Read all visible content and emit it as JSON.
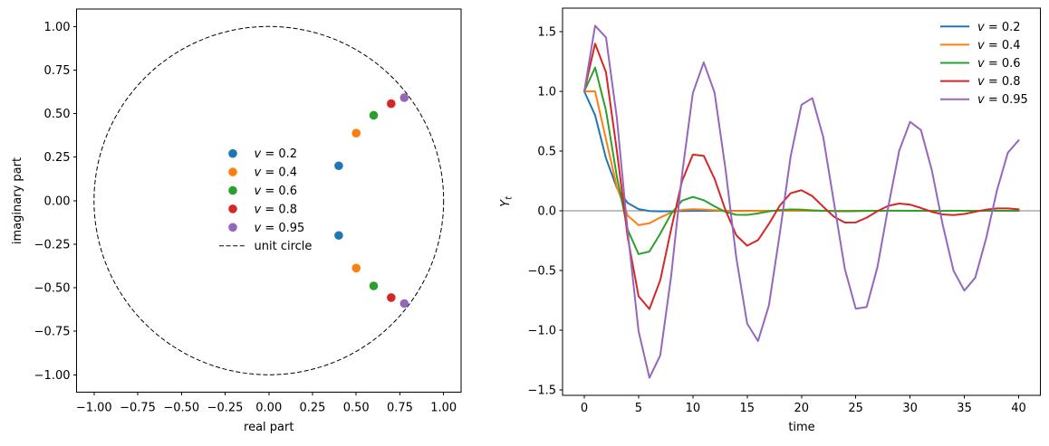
{
  "figure": {
    "background": "#ffffff",
    "text_color": "#000000",
    "spine_color": "#000000"
  },
  "chart_data": [
    {
      "type": "scatter",
      "title": "",
      "xlabel": "real part",
      "ylabel": "imaginary part",
      "xlim": [
        -1.1,
        1.1
      ],
      "ylim": [
        -1.1,
        1.1
      ],
      "xticks": [
        -1.0,
        -0.75,
        -0.5,
        -0.25,
        0.0,
        0.25,
        0.5,
        0.75,
        1.0
      ],
      "yticks": [
        -1.0,
        -0.75,
        -0.5,
        -0.25,
        0.0,
        0.25,
        0.5,
        0.75,
        1.0
      ],
      "grid": false,
      "legend_position": "center",
      "series": [
        {
          "label": "v = 0.2",
          "color": "#1f77b4",
          "points": [
            [
              0.4,
              0.2
            ],
            [
              0.4,
              -0.2
            ]
          ]
        },
        {
          "label": "v = 0.4",
          "color": "#ff7f0e",
          "points": [
            [
              0.5,
              0.3873
            ],
            [
              0.5,
              -0.3873
            ]
          ]
        },
        {
          "label": "v = 0.6",
          "color": "#2ca02c",
          "points": [
            [
              0.6,
              0.4899
            ],
            [
              0.6,
              -0.4899
            ]
          ]
        },
        {
          "label": "v = 0.8",
          "color": "#d62728",
          "points": [
            [
              0.7,
              0.5568
            ],
            [
              0.7,
              -0.5568
            ]
          ]
        },
        {
          "label": "v = 0.95",
          "color": "#9467bd",
          "points": [
            [
              0.775,
              0.5911
            ],
            [
              0.775,
              -0.5911
            ]
          ]
        }
      ],
      "reference": {
        "label": "unit circle",
        "shape": "circle",
        "center": [
          0,
          0
        ],
        "radius": 1,
        "line_style": "dashed",
        "color": "#000000"
      }
    },
    {
      "type": "line",
      "title": "",
      "xlabel": "time",
      "ylabel": "Y_t",
      "xlim": [
        -2,
        42
      ],
      "ylim": [
        -1.545,
        1.697
      ],
      "xticks": [
        0,
        5,
        10,
        15,
        20,
        25,
        30,
        35,
        40
      ],
      "yticks": [
        -1.5,
        -1.0,
        -0.5,
        0.0,
        0.5,
        1.0,
        1.5
      ],
      "grid": false,
      "legend_position": "upper right",
      "zero_line": {
        "y": 0,
        "color": "#808080"
      },
      "x": [
        0,
        1,
        2,
        3,
        4,
        5,
        6,
        7,
        8,
        9,
        10,
        11,
        12,
        13,
        14,
        15,
        16,
        17,
        18,
        19,
        20,
        21,
        22,
        23,
        24,
        25,
        26,
        27,
        28,
        29,
        30,
        31,
        32,
        33,
        34,
        35,
        36,
        37,
        38,
        39,
        40
      ],
      "series": [
        {
          "label": "v = 0.2",
          "color": "#1f77b4",
          "values": [
            1,
            0.8,
            0.44,
            0.192,
            0.0656,
            0.0141,
            -0.0019,
            -0.0043,
            -0.0031,
            -0.0016,
            -0.0007,
            -0.0002,
            0,
            0,
            0,
            0,
            0,
            0,
            0,
            0,
            0,
            0,
            0,
            0,
            0,
            0,
            0,
            0,
            0,
            0,
            0,
            0,
            0,
            0,
            0,
            0,
            0,
            0,
            0,
            0,
            0
          ]
        },
        {
          "label": "v = 0.4",
          "color": "#ff7f0e",
          "values": [
            1,
            1,
            0.6,
            0.2,
            -0.04,
            -0.12,
            -0.104,
            -0.056,
            -0.0144,
            0.008,
            0.0138,
            0.0106,
            0.0051,
            0.0008,
            -0.0012,
            -0.0015,
            -0.001,
            -0.0004,
            0,
            0.0002,
            0.0002,
            0.0001,
            0,
            0,
            0,
            0,
            0,
            0,
            0,
            0,
            0,
            0,
            0,
            0,
            0,
            0,
            0,
            0,
            0,
            0,
            0
          ]
        },
        {
          "label": "v = 0.6",
          "color": "#2ca02c",
          "values": [
            1,
            1.2,
            0.84,
            0.288,
            -0.1584,
            -0.3629,
            -0.3404,
            -0.1908,
            -0.0247,
            0.0849,
            0.1166,
            0.089,
            0.0369,
            -0.0092,
            -0.0331,
            -0.0343,
            -0.0212,
            -0.0049,
            0.0068,
            0.0112,
            0.0093,
            0.0044,
            -0.0002,
            -0.0029,
            -0.0034,
            -0.0023,
            -0.0007,
            0.0005,
            0.001,
            0.001,
            0.0005,
            0,
            -0.0003,
            -0.0003,
            -0.0002,
            -0.0001,
            0,
            0.0001,
            0.0001,
            0.0001,
            0
          ]
        },
        {
          "label": "v = 0.8",
          "color": "#d62728",
          "values": [
            1,
            1.4,
            1.16,
            0.504,
            -0.2224,
            -0.7146,
            -0.8225,
            -0.5798,
            -0.1538,
            0.2486,
            0.471,
            0.4606,
            0.268,
            0.0067,
            -0.205,
            -0.2923,
            -0.2453,
            -0.1095,
            0.0429,
            0.1477,
            0.1724,
            0.1233,
            0.0346,
            -0.0501,
            -0.0979,
            -0.0969,
            -0.0574,
            -0.0028,
            0.042,
            0.061,
            0.0519,
            0.0238,
            -0.0082,
            -0.0305,
            -0.0361,
            -0.0262,
            -0.0078,
            0.0101,
            0.0203,
            0.0204,
            0.0123
          ]
        },
        {
          "label": "v = 0.95",
          "color": "#9467bd",
          "values": [
            1,
            1.55,
            1.4525,
            0.7789,
            -0.1726,
            -1.0075,
            -1.3976,
            -1.2092,
            -0.5466,
            0.3015,
            0.9866,
            1.2428,
            0.989,
            0.3523,
            -0.3935,
            -0.9446,
            -1.0903,
            -0.7926,
            -0.1927,
            0.4543,
            0.8873,
            0.9437,
            0.6198,
            0.0642,
            -0.4893,
            -0.8194,
            -0.8053,
            -0.4698,
            0.0368,
            0.5033,
            0.7451,
            0.6768,
            0.3412,
            -0.1141,
            -0.501,
            -0.6682,
            -0.5598,
            -0.2329,
            0.1708,
            0.486,
            0.591
          ]
        }
      ]
    }
  ]
}
